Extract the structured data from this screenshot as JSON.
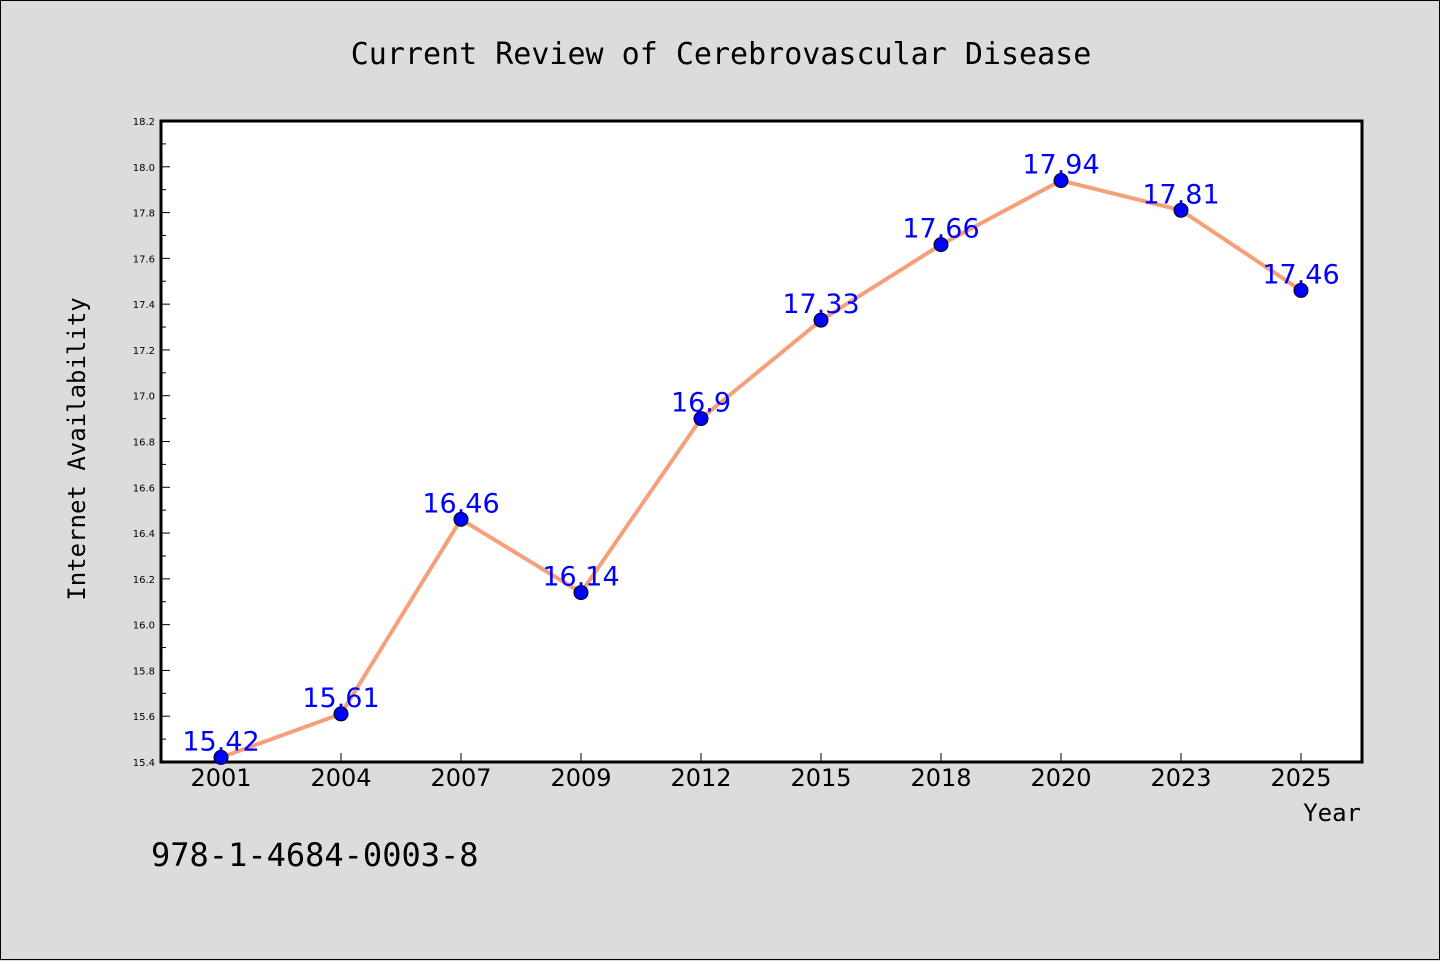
{
  "chart_data": {
    "type": "line",
    "title": "Current Review of Cerebrovascular Disease",
    "xlabel": "Year",
    "ylabel": "Internet Availability",
    "categories": [
      "2001",
      "2004",
      "2007",
      "2009",
      "2012",
      "2015",
      "2018",
      "2020",
      "2023",
      "2025"
    ],
    "series": [
      {
        "values": [
          15.42,
          15.61,
          16.46,
          16.14,
          16.9,
          17.33,
          17.66,
          17.94,
          17.81,
          17.46
        ],
        "labels": [
          "15.42",
          "15.61",
          "16.46",
          "16.14",
          "16.9",
          "17.33",
          "17.66",
          "17.94",
          "17.81",
          "17.46"
        ],
        "line_color": "#f4a07a",
        "marker_color": "#0000ff"
      }
    ],
    "ylim": [
      15.4,
      18.2
    ],
    "yticks": [
      "15.4",
      "15.6",
      "15.8",
      "16.0",
      "16.2",
      "16.4",
      "16.6",
      "16.8",
      "17.0",
      "17.2",
      "17.4",
      "17.6",
      "17.8",
      "18.0",
      "18.2"
    ],
    "grid": false,
    "legend": "none"
  },
  "annotation": "978-1-4684-0003-8",
  "colors": {
    "background": "#dcdcdc",
    "plot_background": "#ffffff",
    "line": "#f4a07a",
    "marker": "#0000ff",
    "data_label": "#0000ff"
  }
}
